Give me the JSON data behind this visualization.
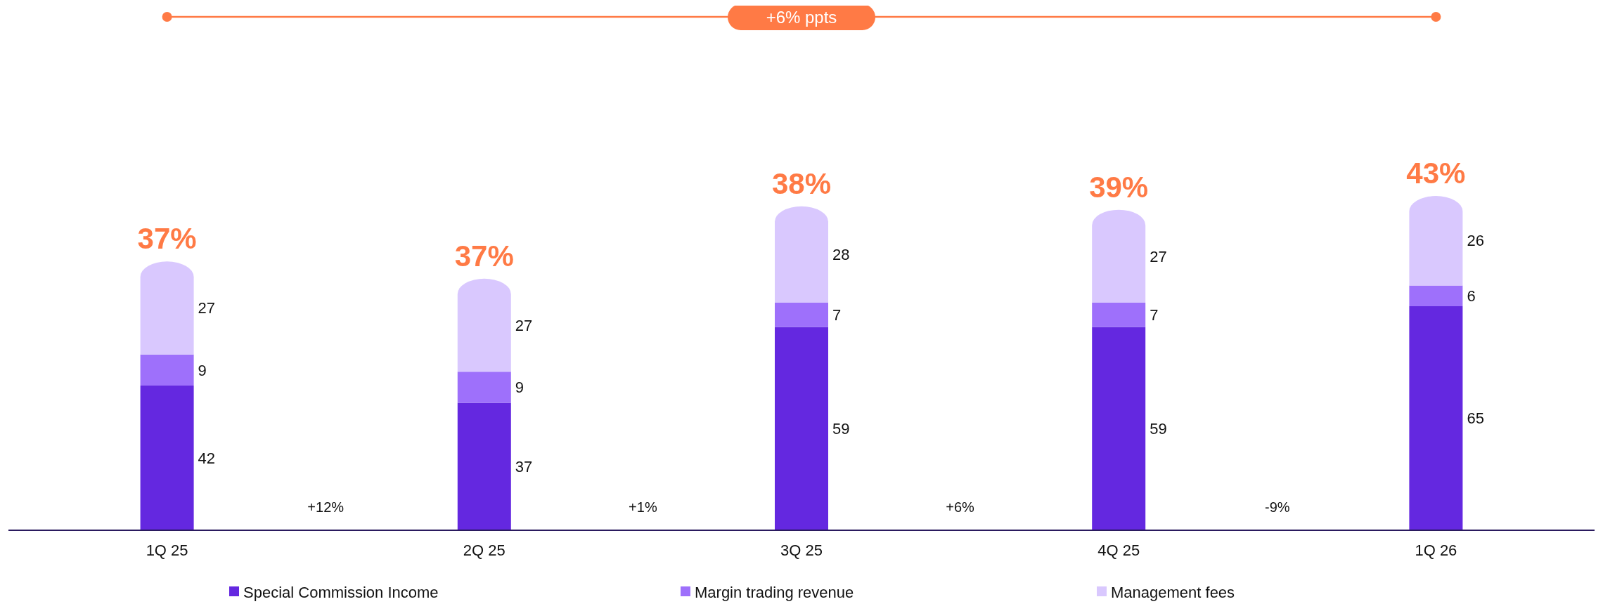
{
  "chart_data": {
    "type": "bar",
    "stacked": true,
    "data_labels": true,
    "legend": "bottom",
    "categories": [
      "1Q 25",
      "2Q 25",
      "3Q 25",
      "4Q 25",
      "1Q 26"
    ],
    "series": [
      {
        "name": "Special Commission Income",
        "color": "#6428e0",
        "values": [
          42,
          37,
          59,
          59,
          65
        ]
      },
      {
        "name": "Margin trading revenue",
        "color": "#9e70fb",
        "values": [
          9,
          9,
          7,
          7,
          6
        ]
      },
      {
        "name": "Management fees",
        "color": "#d9c8fe",
        "values": [
          27,
          27,
          28,
          27,
          26
        ]
      }
    ],
    "annotations": [
      "+6% ppts",
      "+12%",
      "+1%",
      "+6%",
      "-9%",
      "37%",
      "37%",
      "38%",
      "39%",
      "43%"
    ]
  }
}
